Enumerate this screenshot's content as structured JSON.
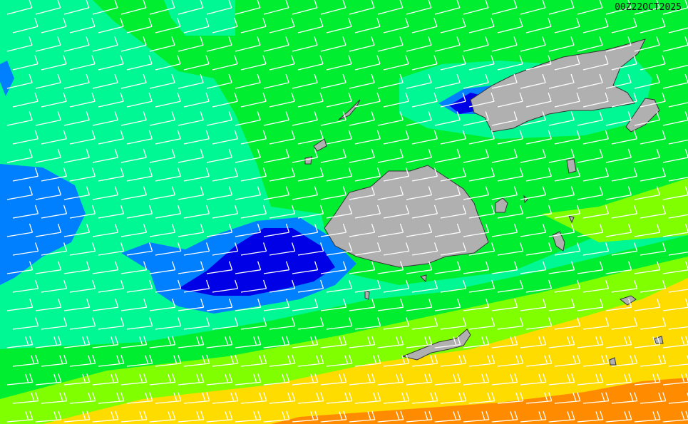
{
  "map": {
    "timestamp": "00Z22OCT2025",
    "colors": {
      "teal": "#00f894",
      "green": "#00ee30",
      "lime": "#80ff00",
      "yellow": "#ffdc00",
      "orange": "#ff8c00",
      "blue": "#0080ff",
      "dark_blue": "#0000e6",
      "land": "#b0b0b0",
      "barb": "#ffffff"
    },
    "features": [
      "wind-barbs",
      "land-masses"
    ]
  }
}
